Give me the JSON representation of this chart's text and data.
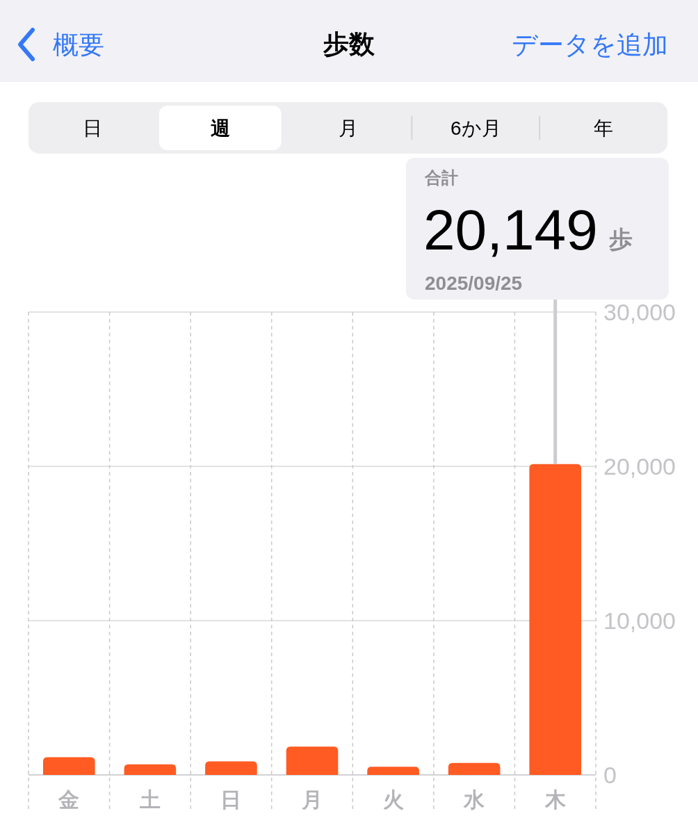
{
  "chart_data": {
    "type": "bar",
    "title": "歩数",
    "categories": [
      "金",
      "土",
      "日",
      "月",
      "火",
      "水",
      "木"
    ],
    "values": [
      1150,
      690,
      880,
      1840,
      530,
      780,
      20149
    ],
    "color": "#ff5b22",
    "ylim": [
      0,
      30000
    ],
    "yticks": [
      0,
      {
        "value": 10000,
        "label": "10,000"
      },
      {
        "value": 20000,
        "label": "20,000"
      },
      {
        "value": 30000,
        "label": "30,000"
      }
    ],
    "grid": true,
    "annotations": [
      "概要",
      "データを追加",
      "日",
      "週",
      "月",
      "6か月",
      "年",
      "合計",
      {
        "text": "20,149",
        "x": "木",
        "y": 20149
      },
      "歩",
      "2025/09/25"
    ]
  }
}
